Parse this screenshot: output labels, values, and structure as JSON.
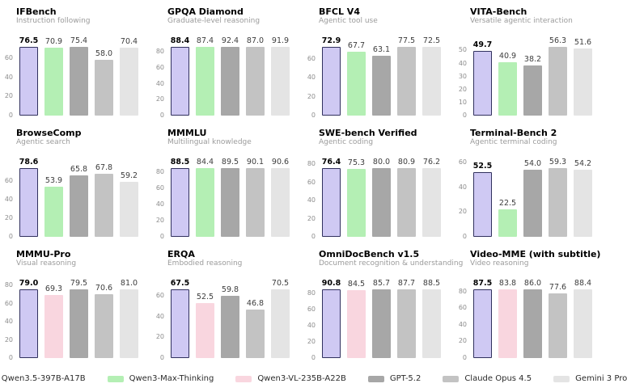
{
  "page": {
    "background": "#ffffff"
  },
  "series_colors": {
    "Qwen3.5-397B-A17B": {
      "fill": "#cfc9f3",
      "border": "#31315e",
      "highlight": true
    },
    "Qwen3-Max-Thinking": {
      "fill": "#b4efb4"
    },
    "Qwen3-VL-235B-A22B": {
      "fill": "#f9d6df"
    },
    "GPT-5.2": {
      "fill": "#a7a7a7"
    },
    "Claude Opus 4.5": {
      "fill": "#c3c3c3"
    },
    "Gemini 3 Pro": {
      "fill": "#e4e4e4"
    }
  },
  "legend": {
    "items": [
      {
        "series": "Qwen3.5-397B-A17B",
        "label": "Qwen3.5-397B-A17B"
      },
      {
        "series": "Qwen3-Max-Thinking",
        "label": "Qwen3-Max-Thinking"
      },
      {
        "series": "Qwen3-VL-235B-A22B",
        "label": "Qwen3-VL-235B-A22B"
      },
      {
        "series": "GPT-5.2",
        "label": "GPT-5.2"
      },
      {
        "series": "Claude Opus 4.5",
        "label": "Claude Opus 4.5"
      },
      {
        "series": "Gemini 3 Pro",
        "label": "Gemini 3 Pro"
      }
    ]
  },
  "chart_data": [
    {
      "type": "bar",
      "title": "IFBench",
      "subtitle": "Instruction following",
      "xlabel": "",
      "ylabel": "",
      "grid": false,
      "yticks": [
        0,
        20,
        40,
        60
      ],
      "ylim": [
        0,
        82.6
      ],
      "bars": [
        {
          "series": "Qwen3.5-397B-A17B",
          "value": 76.5,
          "label": "76.5"
        },
        {
          "series": "Qwen3-Max-Thinking",
          "value": 70.9,
          "label": "70.9"
        },
        {
          "series": "GPT-5.2",
          "value": 75.4,
          "label": "75.4"
        },
        {
          "series": "Claude Opus 4.5",
          "value": 58.0,
          "label": "58.0"
        },
        {
          "series": "Gemini 3 Pro",
          "value": 70.4,
          "label": "70.4"
        }
      ]
    },
    {
      "type": "bar",
      "title": "GPQA Diamond",
      "subtitle": "Graduate-level reasoning",
      "xlabel": "",
      "ylabel": "",
      "grid": false,
      "yticks": [
        0,
        20,
        40,
        60,
        80
      ],
      "ylim": [
        0,
        99.8
      ],
      "bars": [
        {
          "series": "Qwen3.5-397B-A17B",
          "value": 88.4,
          "label": "88.4"
        },
        {
          "series": "Qwen3-Max-Thinking",
          "value": 87.4,
          "label": "87.4"
        },
        {
          "series": "GPT-5.2",
          "value": 92.4,
          "label": "92.4"
        },
        {
          "series": "Claude Opus 4.5",
          "value": 87.0,
          "label": "87.0"
        },
        {
          "series": "Gemini 3 Pro",
          "value": 91.9,
          "label": "91.9"
        }
      ]
    },
    {
      "type": "bar",
      "title": "BFCL V4",
      "subtitle": "Agentic tool use",
      "xlabel": "",
      "ylabel": "",
      "grid": false,
      "yticks": [
        0,
        20,
        40,
        60
      ],
      "ylim": [
        0,
        83.7
      ],
      "bars": [
        {
          "series": "Qwen3.5-397B-A17B",
          "value": 72.9,
          "label": "72.9"
        },
        {
          "series": "Qwen3-Max-Thinking",
          "value": 67.7,
          "label": "67.7"
        },
        {
          "series": "GPT-5.2",
          "value": 63.1,
          "label": "63.1"
        },
        {
          "series": "Claude Opus 4.5",
          "value": 77.5,
          "label": "77.5"
        },
        {
          "series": "Gemini 3 Pro",
          "value": 72.5,
          "label": "72.5"
        }
      ]
    },
    {
      "type": "bar",
      "title": "VITA-Bench",
      "subtitle": "Versatile agentic interaction",
      "xlabel": "",
      "ylabel": "",
      "grid": false,
      "yticks": [
        0,
        10,
        20,
        30,
        40,
        50
      ],
      "ylim": [
        0,
        60.8
      ],
      "bars": [
        {
          "series": "Qwen3.5-397B-A17B",
          "value": 49.7,
          "label": "49.7"
        },
        {
          "series": "Qwen3-Max-Thinking",
          "value": 40.9,
          "label": "40.9"
        },
        {
          "series": "GPT-5.2",
          "value": 38.2,
          "label": "38.2"
        },
        {
          "series": "Claude Opus 4.5",
          "value": 56.3,
          "label": "56.3"
        },
        {
          "series": "Gemini 3 Pro",
          "value": 51.6,
          "label": "51.6"
        }
      ]
    },
    {
      "type": "bar",
      "title": "BrowseComp",
      "subtitle": "Agentic search",
      "xlabel": "",
      "ylabel": "",
      "grid": false,
      "yticks": [
        0,
        20,
        40,
        60
      ],
      "ylim": [
        0,
        84.9
      ],
      "bars": [
        {
          "series": "Qwen3.5-397B-A17B",
          "value": 78.6,
          "label": "78.6"
        },
        {
          "series": "Qwen3-Max-Thinking",
          "value": 53.9,
          "label": "53.9"
        },
        {
          "series": "GPT-5.2",
          "value": 65.8,
          "label": "65.8"
        },
        {
          "series": "Claude Opus 4.5",
          "value": 67.8,
          "label": "67.8"
        },
        {
          "series": "Gemini 3 Pro",
          "value": 59.2,
          "label": "59.2"
        }
      ]
    },
    {
      "type": "bar",
      "title": "MMMLU",
      "subtitle": "Multilingual knowledge",
      "xlabel": "",
      "ylabel": "",
      "grid": false,
      "yticks": [
        0,
        20,
        40,
        60,
        80
      ],
      "ylim": [
        0,
        97.8
      ],
      "bars": [
        {
          "series": "Qwen3.5-397B-A17B",
          "value": 88.5,
          "label": "88.5"
        },
        {
          "series": "Qwen3-Max-Thinking",
          "value": 84.4,
          "label": "84.4"
        },
        {
          "series": "GPT-5.2",
          "value": 89.5,
          "label": "89.5"
        },
        {
          "series": "Claude Opus 4.5",
          "value": 90.1,
          "label": "90.1"
        },
        {
          "series": "Gemini 3 Pro",
          "value": 90.6,
          "label": "90.6"
        }
      ]
    },
    {
      "type": "bar",
      "title": "SWE-bench Verified",
      "subtitle": "Agentic coding",
      "xlabel": "",
      "ylabel": "",
      "grid": false,
      "yticks": [
        0,
        20,
        40,
        60,
        80
      ],
      "ylim": [
        0,
        87.4
      ],
      "bars": [
        {
          "series": "Qwen3.5-397B-A17B",
          "value": 76.4,
          "label": "76.4"
        },
        {
          "series": "Qwen3-Max-Thinking",
          "value": 75.3,
          "label": "75.3"
        },
        {
          "series": "GPT-5.2",
          "value": 80.0,
          "label": "80.0"
        },
        {
          "series": "Claude Opus 4.5",
          "value": 80.9,
          "label": "80.9"
        },
        {
          "series": "Gemini 3 Pro",
          "value": 76.2,
          "label": "76.2"
        }
      ]
    },
    {
      "type": "bar",
      "title": "Terminal-Bench 2",
      "subtitle": "Agentic terminal coding",
      "xlabel": "",
      "ylabel": "",
      "grid": false,
      "yticks": [
        0,
        20,
        40,
        60
      ],
      "ylim": [
        0,
        64.0
      ],
      "bars": [
        {
          "series": "Qwen3.5-397B-A17B",
          "value": 52.5,
          "label": "52.5"
        },
        {
          "series": "Qwen3-Max-Thinking",
          "value": 22.5,
          "label": "22.5"
        },
        {
          "series": "GPT-5.2",
          "value": 54.0,
          "label": "54.0"
        },
        {
          "series": "Claude Opus 4.5",
          "value": 59.3,
          "label": "59.3"
        },
        {
          "series": "Gemini 3 Pro",
          "value": 54.2,
          "label": "54.2"
        }
      ]
    },
    {
      "type": "bar",
      "title": "MMMU-Pro",
      "subtitle": "Visual reasoning",
      "xlabel": "",
      "ylabel": "",
      "grid": false,
      "yticks": [
        0,
        20,
        40,
        60,
        80
      ],
      "ylim": [
        0,
        87.5
      ],
      "bars": [
        {
          "series": "Qwen3.5-397B-A17B",
          "value": 79.0,
          "label": "79.0"
        },
        {
          "series": "Qwen3-VL-235B-A22B",
          "value": 69.3,
          "label": "69.3"
        },
        {
          "series": "GPT-5.2",
          "value": 79.5,
          "label": "79.5"
        },
        {
          "series": "Claude Opus 4.5",
          "value": 70.6,
          "label": "70.6"
        },
        {
          "series": "Gemini 3 Pro",
          "value": 81.0,
          "label": "81.0"
        }
      ]
    },
    {
      "type": "bar",
      "title": "ERQA",
      "subtitle": "Embodied reasoning",
      "xlabel": "",
      "ylabel": "",
      "grid": false,
      "yticks": [
        0,
        20,
        40,
        60
      ],
      "ylim": [
        0,
        76.1
      ],
      "bars": [
        {
          "series": "Qwen3.5-397B-A17B",
          "value": 67.5,
          "label": "67.5"
        },
        {
          "series": "Qwen3-VL-235B-A22B",
          "value": 52.5,
          "label": "52.5"
        },
        {
          "series": "GPT-5.2",
          "value": 59.8,
          "label": "59.8"
        },
        {
          "series": "Claude Opus 4.5",
          "value": 46.8,
          "label": "46.8"
        },
        {
          "series": "Gemini 3 Pro",
          "value": 70.5,
          "label": "70.5"
        }
      ]
    },
    {
      "type": "bar",
      "title": "OmniDocBench v1.5",
      "subtitle": "Document recognition & understanding",
      "xlabel": "",
      "ylabel": "",
      "grid": false,
      "yticks": [
        0,
        20,
        40,
        60,
        80
      ],
      "ylim": [
        0,
        98.1
      ],
      "bars": [
        {
          "series": "Qwen3.5-397B-A17B",
          "value": 90.8,
          "label": "90.8"
        },
        {
          "series": "Qwen3-VL-235B-A22B",
          "value": 84.5,
          "label": "84.5"
        },
        {
          "series": "GPT-5.2",
          "value": 85.7,
          "label": "85.7"
        },
        {
          "series": "Claude Opus 4.5",
          "value": 87.7,
          "label": "87.7"
        },
        {
          "series": "Gemini 3 Pro",
          "value": 88.5,
          "label": "88.5"
        }
      ]
    },
    {
      "type": "bar",
      "title": "Video-MME (with subtitle)",
      "subtitle": "Video reasoning",
      "xlabel": "",
      "ylabel": "",
      "grid": false,
      "yticks": [
        0,
        20,
        40,
        60,
        80
      ],
      "ylim": [
        0,
        95.5
      ],
      "bars": [
        {
          "series": "Qwen3.5-397B-A17B",
          "value": 87.5,
          "label": "87.5"
        },
        {
          "series": "Qwen3-VL-235B-A22B",
          "value": 83.8,
          "label": "83.8"
        },
        {
          "series": "GPT-5.2",
          "value": 86.0,
          "label": "86.0"
        },
        {
          "series": "Claude Opus 4.5",
          "value": 77.6,
          "label": "77.6"
        },
        {
          "series": "Gemini 3 Pro",
          "value": 88.4,
          "label": "88.4"
        }
      ]
    }
  ]
}
